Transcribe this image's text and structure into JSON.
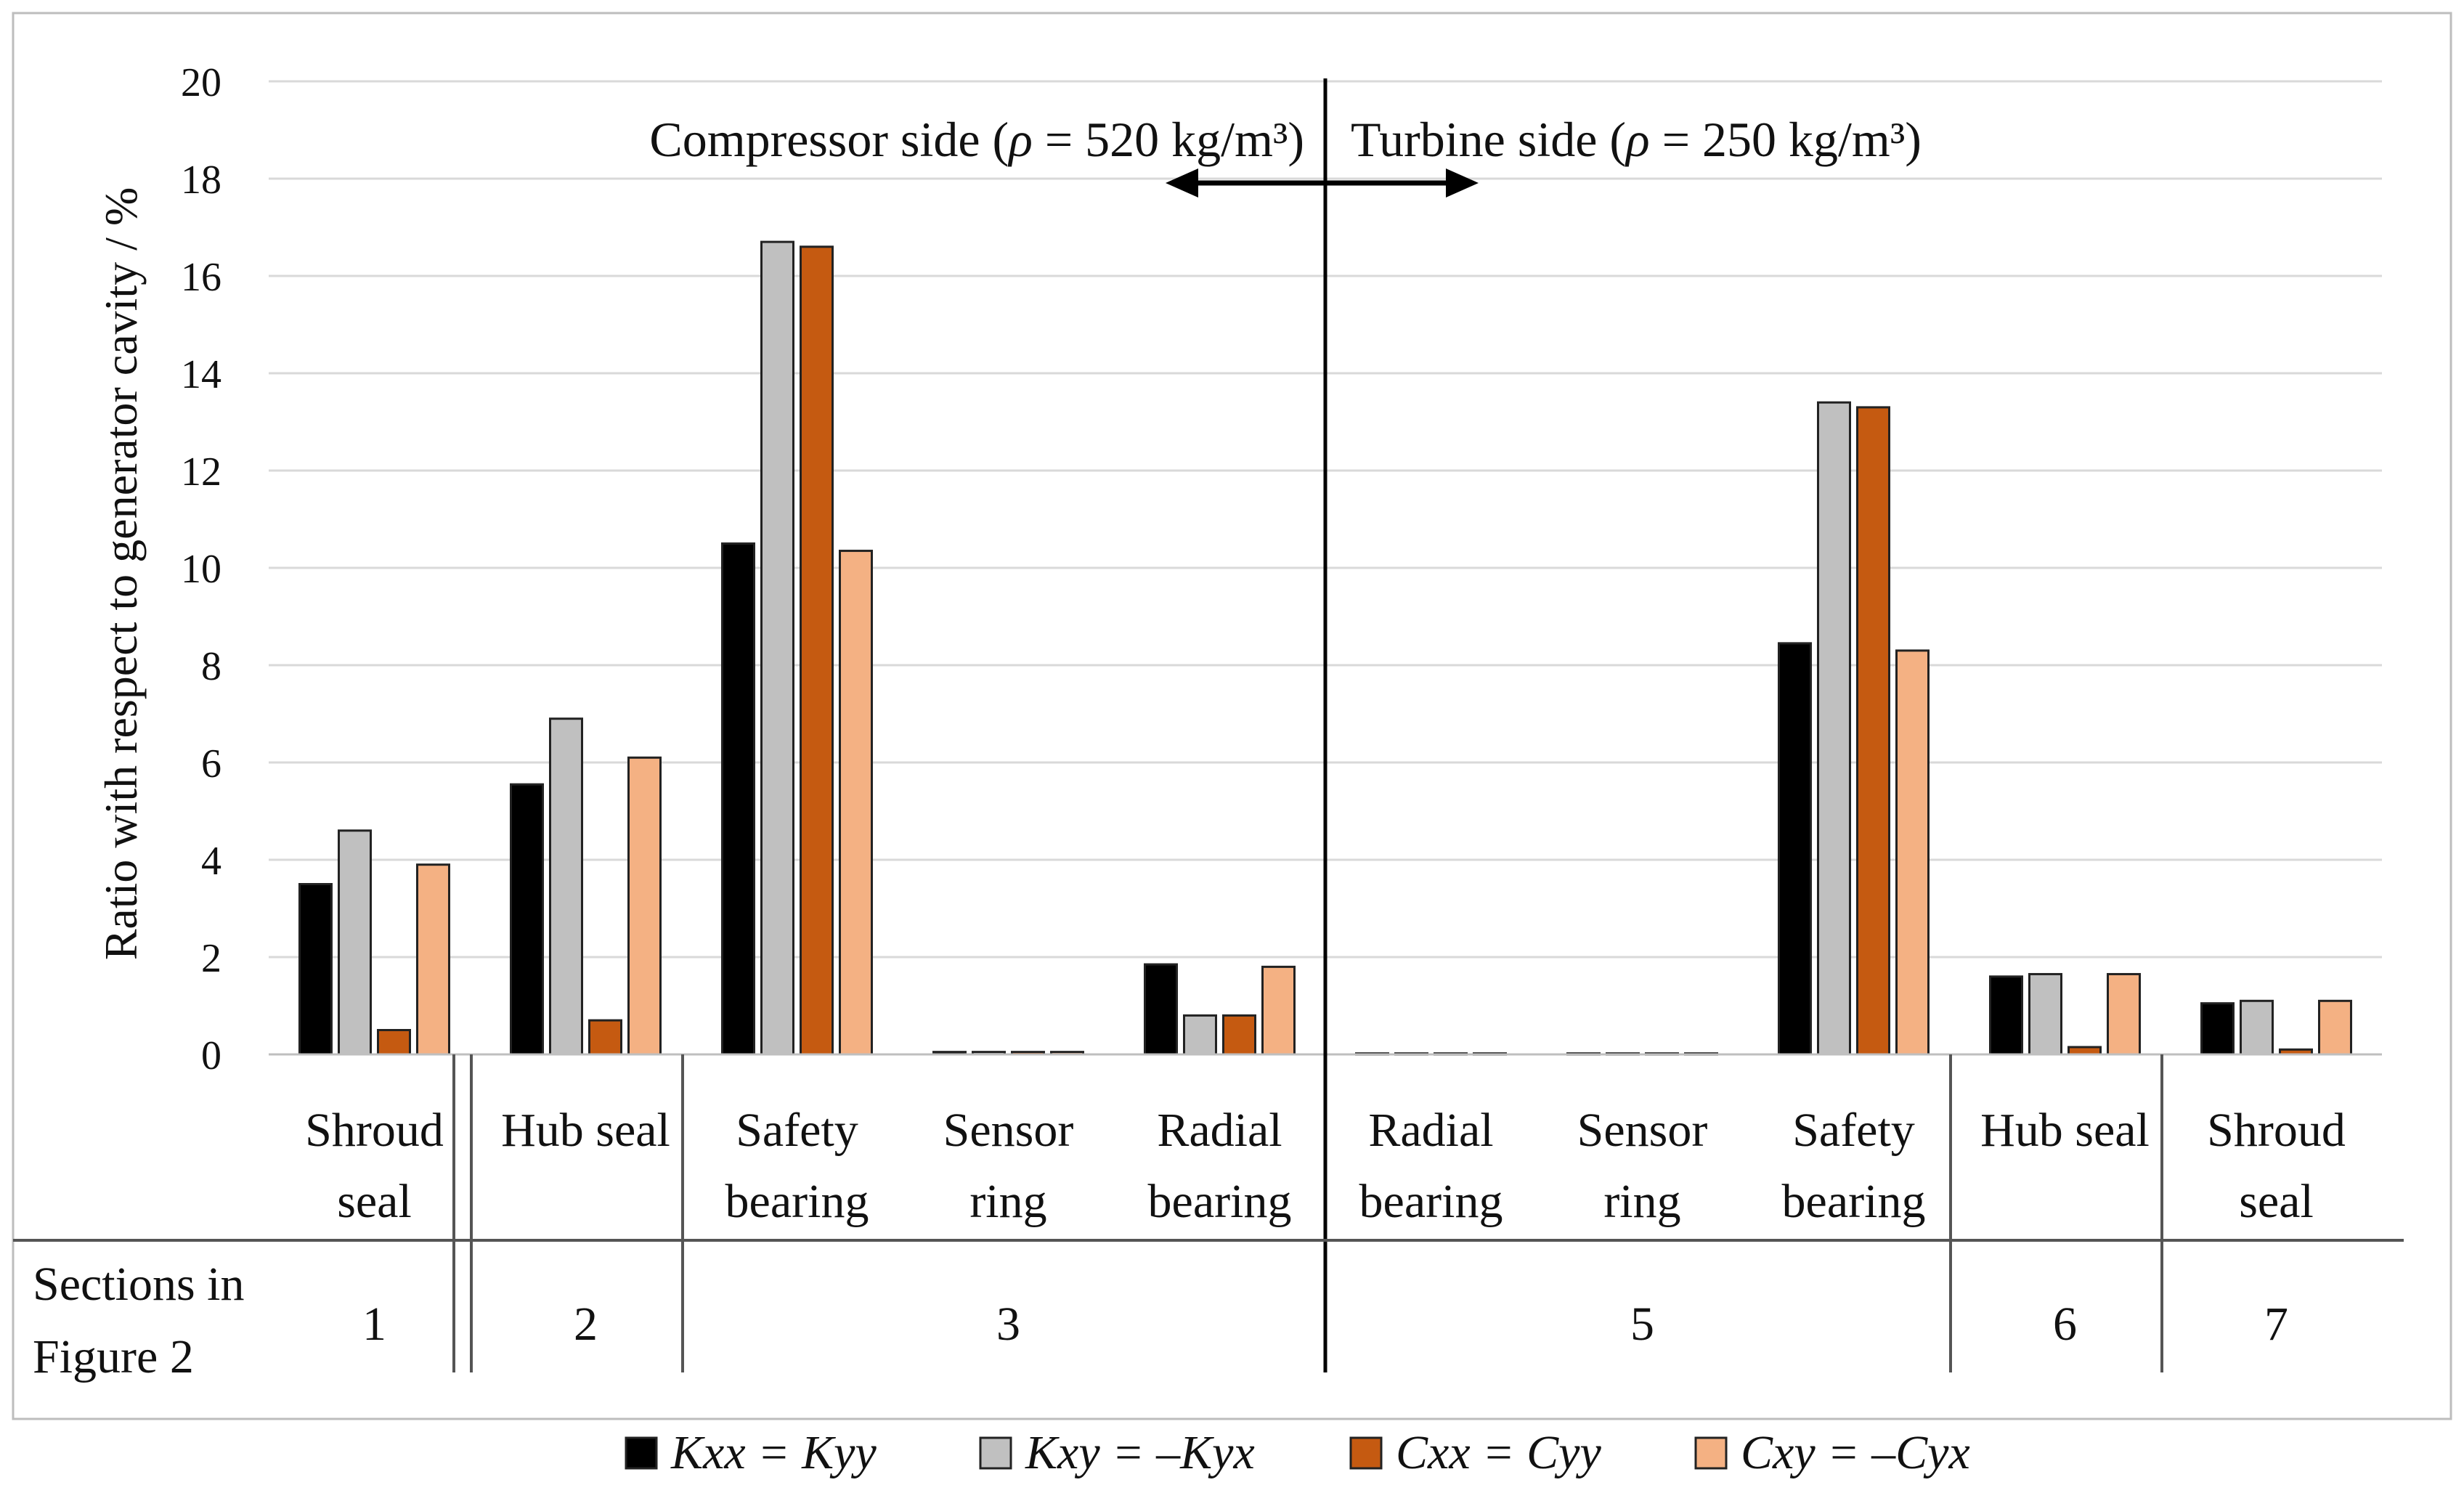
{
  "chart_data": {
    "type": "bar",
    "ylabel": "Ratio with respect to generator cavity / %",
    "ylim": [
      0,
      20
    ],
    "yticks": [
      0,
      2,
      4,
      6,
      8,
      10,
      12,
      14,
      16,
      18,
      20
    ],
    "grid": true,
    "categories": [
      [
        "Shroud",
        "seal"
      ],
      [
        "Hub seal"
      ],
      [
        "Safety",
        "bearing"
      ],
      [
        "Sensor",
        "ring"
      ],
      [
        "Radial",
        "bearing"
      ],
      [
        "Radial",
        "bearing"
      ],
      [
        "Sensor",
        "ring"
      ],
      [
        "Safety",
        "bearing"
      ],
      [
        "Hub seal"
      ],
      [
        "Shroud",
        "seal"
      ]
    ],
    "series": [
      {
        "name": "Kxx = Kyy",
        "color": "#000000",
        "values": [
          3.5,
          5.55,
          10.5,
          0.05,
          1.85,
          0.02,
          0.02,
          8.45,
          1.6,
          1.05
        ]
      },
      {
        "name": "Kxy = –Kyx",
        "color": "#c0c0c0",
        "values": [
          4.6,
          6.9,
          16.7,
          0.05,
          0.8,
          0.02,
          0.02,
          13.4,
          1.65,
          1.1
        ]
      },
      {
        "name": "Cxx = Cyy",
        "color": "#c55a11",
        "values": [
          0.5,
          0.7,
          16.6,
          0.05,
          0.8,
          0.02,
          0.02,
          13.3,
          0.15,
          0.1
        ]
      },
      {
        "name": "Cxy = –Cyx",
        "color": "#f4b183",
        "values": [
          3.9,
          6.1,
          10.35,
          0.05,
          1.8,
          0.02,
          0.02,
          8.3,
          1.65,
          1.1
        ]
      }
    ],
    "section_row_label": [
      "Sections in",
      "Figure 2"
    ],
    "sections": [
      {
        "label": "1",
        "from": 0,
        "to": 0
      },
      {
        "label": "2",
        "from": 1,
        "to": 1
      },
      {
        "label": "3",
        "from": 2,
        "to": 4
      },
      {
        "label": "5",
        "from": 5,
        "to": 7
      },
      {
        "label": "6",
        "from": 8,
        "to": 8
      },
      {
        "label": "7",
        "from": 9,
        "to": 9
      }
    ],
    "annotations": {
      "compressor_prefix": "Compressor side (",
      "compressor_rho": "ρ",
      "compressor_suffix": " = 520 kg/m³)",
      "turbine_prefix": "Turbine side (",
      "turbine_rho": "ρ",
      "turbine_suffix": " = 250 kg/m³)"
    },
    "legend_placement": "bottom"
  }
}
